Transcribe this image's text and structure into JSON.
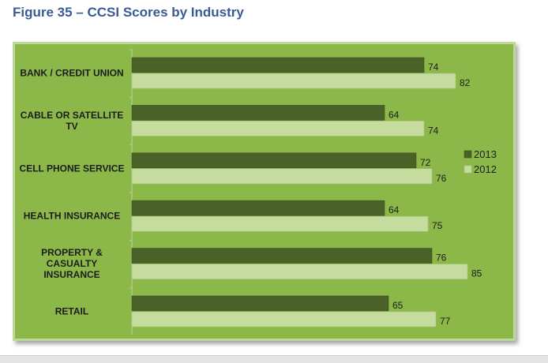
{
  "figure": {
    "title": "Figure 35 – CCSI Scores by Industry"
  },
  "colors": {
    "panel_bg": "#8cb84a",
    "series_2013": "#4a6127",
    "series_2012": "#c6dc9e"
  },
  "chart_data": {
    "type": "bar",
    "orientation": "horizontal",
    "title": "",
    "xlabel": "",
    "ylabel": "",
    "categories": [
      "BANK / CREDIT UNION",
      "CABLE OR SATELLITE TV",
      "CELL PHONE SERVICE",
      "HEALTH INSURANCE",
      "PROPERTY & CASUALTY INSURANCE",
      "RETAIL"
    ],
    "category_lines": [
      [
        "BANK / CREDIT UNION"
      ],
      [
        "CABLE OR SATELLITE",
        "TV"
      ],
      [
        "CELL PHONE SERVICE"
      ],
      [
        "HEALTH INSURANCE"
      ],
      [
        "PROPERTY &",
        "CASUALTY",
        "INSURANCE"
      ],
      [
        "RETAIL"
      ]
    ],
    "series": [
      {
        "name": "2013",
        "values": [
          74,
          64,
          72,
          64,
          76,
          65
        ],
        "color": "#4a6127"
      },
      {
        "name": "2012",
        "values": [
          82,
          74,
          76,
          75,
          85,
          77
        ],
        "color": "#c6dc9e"
      }
    ],
    "xlim": [
      0,
      100
    ],
    "grid": false,
    "data_labels": true,
    "legend_position": "right"
  }
}
